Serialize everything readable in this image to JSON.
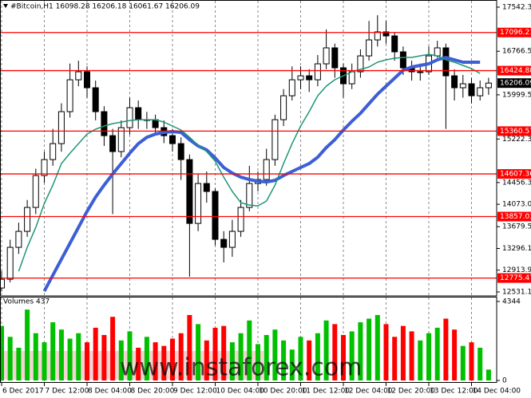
{
  "chart_data": {
    "type": "candlestick",
    "title": "#Bitcoin,H1 16098.28 16206.18 16061.67 16206.09",
    "categories": [
      "6 Dec 2017",
      null,
      null,
      null,
      null,
      "7 Dec 12:00",
      null,
      null,
      null,
      null,
      "8 Dec 04:00",
      null,
      null,
      null,
      null,
      "8 Dec 20:00",
      null,
      null,
      null,
      null,
      "9 Dec 12:00",
      null,
      null,
      null,
      null,
      "10 Dec 04:00",
      null,
      null,
      null,
      null,
      "10 Dec 20:00",
      null,
      null,
      null,
      null,
      "11 Dec 12:00",
      null,
      null,
      null,
      null,
      "12 Dec 04:00",
      null,
      null,
      null,
      null,
      "12 Dec 20:00",
      null,
      null,
      null,
      null,
      "13 Dec 12:00",
      null,
      null,
      null,
      null,
      "14 Dec 04:00",
      null,
      null
    ],
    "open": [
      12600,
      12754,
      13316,
      13597,
      14018,
      14579,
      14860,
      15141,
      15703,
      16264,
      16405,
      16124,
      15703,
      15281,
      15001,
      15422,
      15773,
      15562,
      15562,
      15422,
      15281,
      15141,
      14860,
      13737,
      14439,
      14299,
      13456,
      13316,
      13597,
      14018,
      14439,
      14509,
      14860,
      15562,
      15983,
      16264,
      16334,
      16264,
      16545,
      16826,
      16475,
      16194,
      16405,
      16685,
      16966,
      17107,
      17036,
      16756,
      16475,
      16405,
      16405,
      16685,
      16826,
      16334,
      16124,
      16194,
      15983,
      16124
    ],
    "high": [
      12900,
      13450,
      13750,
      14150,
      14700,
      15000,
      15400,
      15850,
      16550,
      16600,
      16500,
      16250,
      15800,
      15400,
      15550,
      15950,
      15900,
      15700,
      15650,
      15550,
      15400,
      15250,
      14950,
      14600,
      14650,
      14350,
      13600,
      13800,
      14150,
      14750,
      14650,
      15050,
      15650,
      16100,
      16500,
      16500,
      16450,
      16700,
      17150,
      16900,
      16550,
      16550,
      16800,
      17300,
      17400,
      17300,
      17100,
      16850,
      16600,
      16550,
      16850,
      16950,
      16900,
      16450,
      16350,
      16300,
      16250,
      16300
    ],
    "low": [
      12540,
      12700,
      13200,
      13500,
      13900,
      14450,
      14750,
      15000,
      15600,
      16150,
      15950,
      15550,
      15100,
      13900,
      14900,
      15300,
      15400,
      15400,
      15300,
      15150,
      15000,
      14500,
      12800,
      13600,
      14100,
      13350,
      13050,
      13150,
      13500,
      13950,
      14300,
      14400,
      14750,
      15450,
      15900,
      16100,
      16050,
      16150,
      16450,
      16300,
      15950,
      16100,
      16300,
      16600,
      16850,
      16900,
      16600,
      16350,
      16250,
      16250,
      16350,
      16650,
      15400,
      15900,
      15950,
      15850,
      15900,
      16000
    ],
    "close": [
      12754,
      13316,
      13597,
      14018,
      14579,
      14860,
      15141,
      15703,
      16264,
      16405,
      16124,
      15703,
      15281,
      15001,
      15422,
      15773,
      15562,
      15562,
      15422,
      15281,
      15141,
      14860,
      13737,
      14439,
      14299,
      13456,
      13316,
      13597,
      14018,
      14439,
      14509,
      14860,
      15562,
      15983,
      16264,
      16334,
      16264,
      16545,
      16826,
      16475,
      16194,
      16405,
      16685,
      16966,
      17107,
      17036,
      16756,
      16475,
      16405,
      16405,
      16685,
      16826,
      16334,
      16124,
      16194,
      15983,
      16124,
      16206.09
    ],
    "up_color": "#ffffff",
    "down_color": "#000000",
    "ylim": [
      12475,
      17612
    ],
    "yticks": [
      {
        "value": 17542.3,
        "label": "17542.30"
      },
      16766.55,
      15999.55,
      {
        "value": 15222.3,
        "label": "15222.30"
      },
      {
        "value": 14456.3,
        "label": "14456.30"
      },
      14073.04,
      13679.59,
      13296.13,
      {
        "value": 12913.9,
        "label": "12913.90"
      },
      {
        "value": 12531.1,
        "label": "12531.10"
      }
    ],
    "xgrid": true,
    "levels": {
      "color": "#ff0000",
      "values": [
        17096.21,
        16424.88,
        15360.57,
        14607.36,
        13857.03,
        12775.47
      ]
    },
    "moving_averages": [
      {
        "color": "#3c5fd6",
        "width": 4,
        "values": [
          null,
          null,
          null,
          null,
          null,
          12544,
          12824,
          13105,
          13386,
          13667,
          13948,
          14200,
          14411,
          14607,
          14790,
          14972,
          15141,
          15253,
          15309,
          15338,
          15352,
          15338,
          15211,
          15099,
          15029,
          14888,
          14720,
          14622,
          14551,
          14509,
          14481,
          14467,
          14495,
          14579,
          14650,
          14720,
          14790,
          14902,
          15071,
          15211,
          15380,
          15534,
          15674,
          15843,
          16011,
          16152,
          16292,
          16433,
          16489,
          16517,
          16545,
          16615,
          16657,
          16615,
          16573,
          16573,
          16573,
          null
        ]
      },
      {
        "color": "#1e9678",
        "width": 1.5,
        "values": [
          null,
          null,
          12895,
          13316,
          13667,
          14088,
          14411,
          14790,
          14972,
          15141,
          15309,
          15394,
          15450,
          15492,
          15520,
          15548,
          15562,
          15562,
          15562,
          15520,
          15450,
          15380,
          15253,
          15113,
          15001,
          14832,
          14551,
          14299,
          14102,
          14060,
          14046,
          14130,
          14411,
          14790,
          15141,
          15450,
          15703,
          15983,
          16152,
          16264,
          16334,
          16405,
          16447,
          16489,
          16573,
          16615,
          16643,
          16657,
          16657,
          16685,
          16713,
          16685,
          16615,
          16573,
          16517,
          16461,
          16376,
          null
        ]
      }
    ],
    "volume": {
      "title": "Volumes 437",
      "values": [
        3000,
        2400,
        1800,
        3900,
        2600,
        2100,
        3200,
        2800,
        2300,
        2600,
        2100,
        2900,
        2500,
        3500,
        2200,
        2700,
        1800,
        2400,
        2100,
        1900,
        2300,
        2600,
        3600,
        3100,
        2200,
        2900,
        3000,
        2100,
        2600,
        3300,
        2000,
        2500,
        2800,
        2200,
        1700,
        2400,
        2200,
        2600,
        3300,
        3100,
        2500,
        2700,
        3200,
        3400,
        3600,
        3100,
        2400,
        3000,
        2700,
        2200,
        2600,
        2900,
        3400,
        2800,
        1900,
        2100,
        1800,
        600
      ],
      "ylim": [
        0,
        4344
      ],
      "yticks": [
        4344,
        0
      ],
      "up_color": "#00c000",
      "down_color": "#ff0000"
    },
    "watermark": "www.instaforex.com"
  }
}
